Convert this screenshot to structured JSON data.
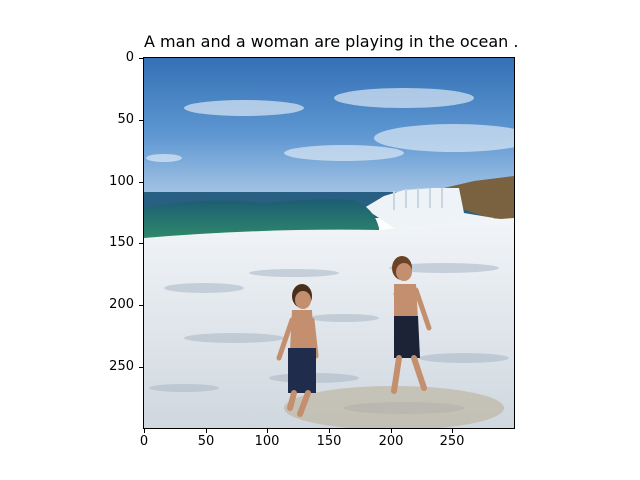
{
  "title": "A man and a woman are playing in the ocean .",
  "axes": {
    "x_ticks": [
      "0",
      "50",
      "100",
      "150",
      "200",
      "250"
    ],
    "y_ticks": [
      "0",
      "50",
      "100",
      "150",
      "200",
      "250"
    ]
  },
  "image": {
    "description_icon": "beach-photo",
    "sky_color": "#3f7ec3",
    "sea_color": "#2f7f68",
    "foam_color": "#e9eef4"
  }
}
